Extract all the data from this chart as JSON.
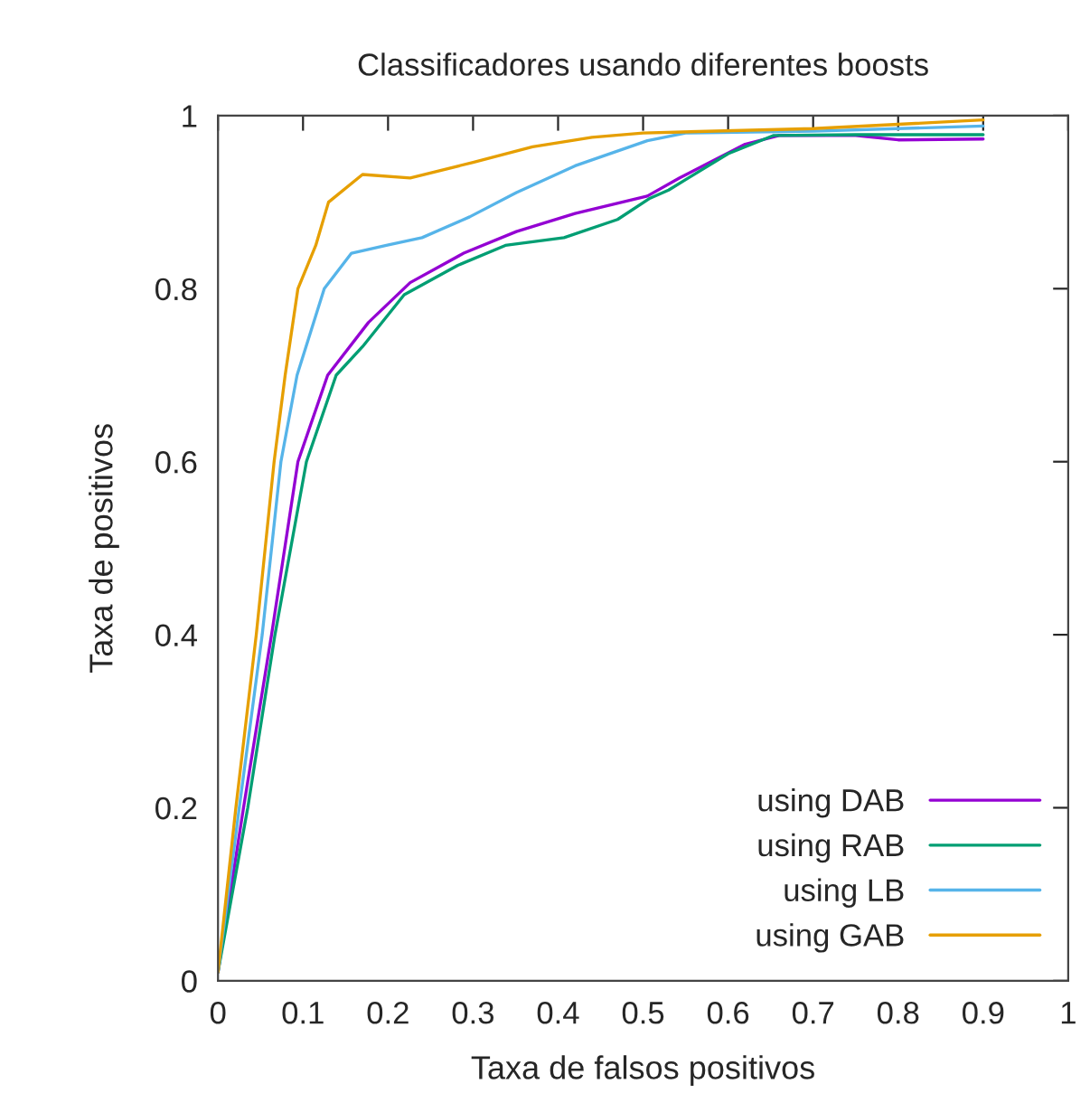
{
  "chart_data": {
    "type": "line",
    "title": "Classificadores usando diferentes boosts",
    "xlabel": "Taxa de falsos positivos",
    "ylabel": "Taxa de positivos",
    "xlim": [
      0,
      1
    ],
    "ylim": [
      0,
      1
    ],
    "xticks": [
      0,
      0.1,
      0.2,
      0.3,
      0.4,
      0.5,
      0.6,
      0.7,
      0.8,
      0.9,
      1
    ],
    "yticks": [
      0,
      0.2,
      0.4,
      0.6,
      0.8,
      1
    ],
    "grid": false,
    "legend": "bottom right",
    "marker": "none",
    "line_style": "solid",
    "series": [
      {
        "name": "using DAB",
        "color": "#9400d3",
        "x": [
          0,
          0.03,
          0.063,
          0.094,
          0.129,
          0.177,
          0.226,
          0.289,
          0.351,
          0.42,
          0.505,
          0.543,
          0.62,
          0.66,
          0.75,
          0.8,
          0.9
        ],
        "values": [
          0.01,
          0.2,
          0.4,
          0.6,
          0.7,
          0.761,
          0.807,
          0.841,
          0.866,
          0.887,
          0.907,
          0.928,
          0.967,
          0.977,
          0.977,
          0.972,
          0.973
        ]
      },
      {
        "name": "using RAB",
        "color": "#009e73",
        "x": [
          0,
          0.035,
          0.067,
          0.104,
          0.139,
          0.17,
          0.219,
          0.282,
          0.338,
          0.407,
          0.47,
          0.507,
          0.53,
          0.6,
          0.653,
          0.75,
          0.9
        ],
        "values": [
          0.01,
          0.2,
          0.4,
          0.6,
          0.7,
          0.733,
          0.793,
          0.827,
          0.85,
          0.859,
          0.88,
          0.904,
          0.914,
          0.956,
          0.977,
          0.978,
          0.978
        ]
      },
      {
        "name": "using LB",
        "color": "#56b4e9",
        "x": [
          0,
          0.025,
          0.052,
          0.074,
          0.093,
          0.125,
          0.157,
          0.198,
          0.24,
          0.296,
          0.351,
          0.42,
          0.505,
          0.55,
          0.7,
          0.9
        ],
        "values": [
          0.01,
          0.2,
          0.4,
          0.6,
          0.7,
          0.8,
          0.841,
          0.85,
          0.859,
          0.883,
          0.911,
          0.942,
          0.971,
          0.98,
          0.982,
          0.988
        ]
      },
      {
        "name": "using GAB",
        "color": "#e69f00",
        "x": [
          0,
          0.021,
          0.045,
          0.066,
          0.079,
          0.094,
          0.115,
          0.13,
          0.17,
          0.226,
          0.3,
          0.37,
          0.44,
          0.5,
          0.7,
          0.8,
          0.9
        ],
        "values": [
          0.01,
          0.2,
          0.4,
          0.6,
          0.7,
          0.8,
          0.85,
          0.9,
          0.932,
          0.928,
          0.946,
          0.964,
          0.975,
          0.98,
          0.985,
          0.99,
          0.995
        ]
      }
    ]
  }
}
